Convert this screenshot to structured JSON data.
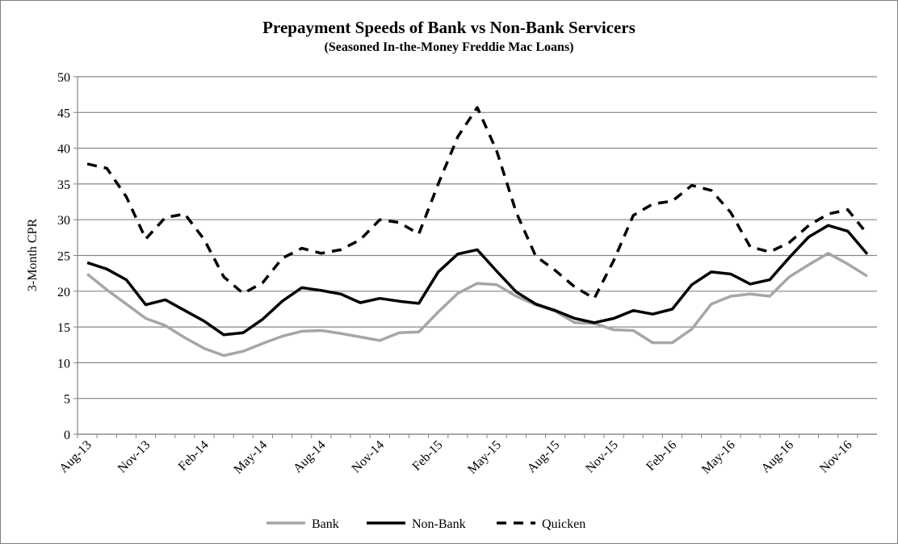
{
  "chart_data": {
    "type": "line",
    "title": "Prepayment Speeds of Bank vs Non-Bank Servicers",
    "subtitle": "(Seasoned In-the-Money Freddie Mac Loans)",
    "xlabel": "",
    "ylabel": "3-Month CPR",
    "ylim": [
      0,
      50
    ],
    "yticks": [
      0,
      5,
      10,
      15,
      20,
      25,
      30,
      35,
      40,
      45,
      50
    ],
    "grid": true,
    "legend_position": "bottom",
    "x": [
      "Aug-13",
      "Sep-13",
      "Oct-13",
      "Nov-13",
      "Dec-13",
      "Jan-14",
      "Feb-14",
      "Mar-14",
      "Apr-14",
      "May-14",
      "Jun-14",
      "Jul-14",
      "Aug-14",
      "Sep-14",
      "Oct-14",
      "Nov-14",
      "Dec-14",
      "Jan-15",
      "Feb-15",
      "Mar-15",
      "Apr-15",
      "May-15",
      "Jun-15",
      "Jul-15",
      "Aug-15",
      "Sep-15",
      "Oct-15",
      "Nov-15",
      "Dec-15",
      "Jan-16",
      "Feb-16",
      "Mar-16",
      "Apr-16",
      "May-16",
      "Jun-16",
      "Jul-16",
      "Aug-16",
      "Sep-16",
      "Oct-16",
      "Nov-16",
      "Dec-16"
    ],
    "xtick_labels": [
      "Aug-13",
      "Nov-13",
      "Feb-14",
      "May-14",
      "Aug-14",
      "Nov-14",
      "Feb-15",
      "May-15",
      "Aug-15",
      "Nov-15",
      "Feb-16",
      "May-16",
      "Aug-16",
      "Nov-16"
    ],
    "series": [
      {
        "name": "Bank",
        "color": "#a6a6a6",
        "dash": "solid",
        "values": [
          22.4,
          20.2,
          18.2,
          16.2,
          15.2,
          13.5,
          12.0,
          11.0,
          11.6,
          12.7,
          13.7,
          14.4,
          14.5,
          14.1,
          13.6,
          13.1,
          14.2,
          14.3,
          17.1,
          19.7,
          21.1,
          20.9,
          19.3,
          18.1,
          17.2,
          15.6,
          15.5,
          14.6,
          14.5,
          12.8,
          12.8,
          14.7,
          18.2,
          19.3,
          19.6,
          19.3,
          22.0,
          23.7,
          25.3,
          23.8,
          22.1
        ]
      },
      {
        "name": "Non-Bank",
        "color": "#000000",
        "dash": "solid",
        "values": [
          24.0,
          23.1,
          21.6,
          18.1,
          18.8,
          17.3,
          15.8,
          13.9,
          14.2,
          16.1,
          18.6,
          20.5,
          20.1,
          19.6,
          18.4,
          19.0,
          18.6,
          18.3,
          22.7,
          25.2,
          25.8,
          22.8,
          19.9,
          18.2,
          17.3,
          16.2,
          15.6,
          16.2,
          17.3,
          16.8,
          17.5,
          20.9,
          22.7,
          22.4,
          21.0,
          21.6,
          24.7,
          27.6,
          29.2,
          28.4,
          25.2
        ]
      },
      {
        "name": "Quicken",
        "color": "#000000",
        "dash": "dashed",
        "values": [
          37.8,
          37.2,
          33.2,
          27.3,
          30.3,
          30.8,
          27.2,
          22.0,
          19.7,
          21.2,
          24.6,
          26.0,
          25.3,
          25.8,
          27.2,
          30.0,
          29.6,
          28.0,
          35.0,
          41.6,
          45.7,
          39.6,
          31.0,
          24.9,
          22.9,
          20.6,
          19.0,
          24.3,
          30.6,
          32.2,
          32.6,
          34.8,
          34.1,
          31.0,
          26.2,
          25.5,
          26.8,
          29.2,
          30.8,
          31.4,
          28.0
        ]
      }
    ]
  }
}
